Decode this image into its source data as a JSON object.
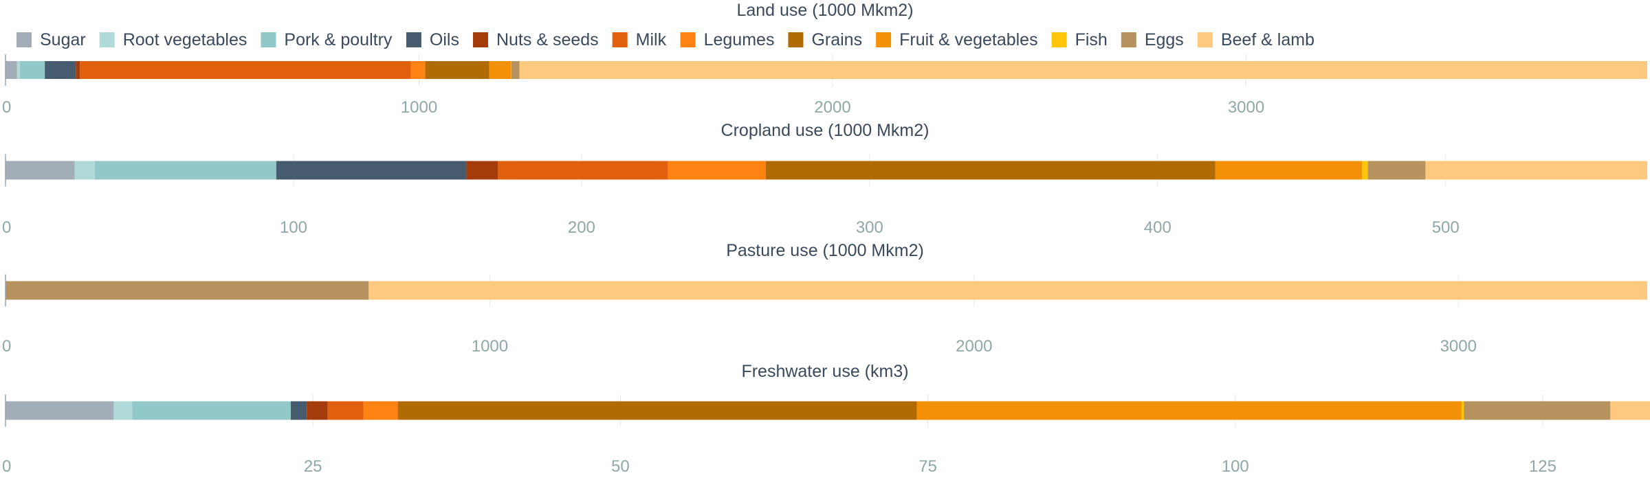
{
  "legend": {
    "items": [
      {
        "name": "Sugar",
        "color": "#a2adb8"
      },
      {
        "name": "Root vegetables",
        "color": "#b0dad8"
      },
      {
        "name": "Pork & poultry",
        "color": "#92c9c8"
      },
      {
        "name": "Oils",
        "color": "#465b6e"
      },
      {
        "name": "Nuts & seeds",
        "color": "#a33b0b"
      },
      {
        "name": "Milk",
        "color": "#e0600d"
      },
      {
        "name": "Legumes",
        "color": "#fe8313"
      },
      {
        "name": "Grains",
        "color": "#b06b05"
      },
      {
        "name": "Fruit & vegetables",
        "color": "#f39106"
      },
      {
        "name": "Fish",
        "color": "#fec50b"
      },
      {
        "name": "Eggs",
        "color": "#b6925e"
      },
      {
        "name": "Beef & lamb",
        "color": "#fdc97f"
      }
    ]
  },
  "chart_data": [
    {
      "type": "bar",
      "orientation": "horizontal-stacked",
      "title": "Land use (1000 Mkm2)",
      "xlim": [
        0,
        3970
      ],
      "ticks": [
        0,
        1000,
        2000,
        3000
      ],
      "grid": true,
      "series": [
        {
          "name": "Sugar",
          "value": 28
        },
        {
          "name": "Root vegetables",
          "value": 7
        },
        {
          "name": "Pork & poultry",
          "value": 60
        },
        {
          "name": "Oils",
          "value": 75
        },
        {
          "name": "Nuts & seeds",
          "value": 10
        },
        {
          "name": "Milk",
          "value": 800
        },
        {
          "name": "Legumes",
          "value": 35
        },
        {
          "name": "Grains",
          "value": 155
        },
        {
          "name": "Fruit & vegetables",
          "value": 52
        },
        {
          "name": "Fish",
          "value": 1
        },
        {
          "name": "Eggs",
          "value": 20
        },
        {
          "name": "Beef & lamb",
          "value": 2727
        }
      ]
    },
    {
      "type": "bar",
      "orientation": "horizontal-stacked",
      "title": "Cropland use (1000 Mkm2)",
      "xlim": [
        0,
        570
      ],
      "ticks": [
        0,
        100,
        200,
        300,
        400,
        500
      ],
      "grid": true,
      "series": [
        {
          "name": "Sugar",
          "value": 24
        },
        {
          "name": "Root vegetables",
          "value": 7
        },
        {
          "name": "Pork & poultry",
          "value": 63
        },
        {
          "name": "Oils",
          "value": 66
        },
        {
          "name": "Nuts & seeds",
          "value": 11
        },
        {
          "name": "Milk",
          "value": 59
        },
        {
          "name": "Legumes",
          "value": 34
        },
        {
          "name": "Grains",
          "value": 156
        },
        {
          "name": "Fruit & vegetables",
          "value": 51
        },
        {
          "name": "Fish",
          "value": 2
        },
        {
          "name": "Eggs",
          "value": 20
        },
        {
          "name": "Beef & lamb",
          "value": 77
        }
      ]
    },
    {
      "type": "bar",
      "orientation": "horizontal-stacked",
      "title": "Pasture use (1000 Mkm2)",
      "xlim": [
        0,
        3390
      ],
      "ticks": [
        0,
        1000,
        2000,
        3000
      ],
      "grid": true,
      "series": [
        {
          "name": "Eggs",
          "value": 750
        },
        {
          "name": "Beef & lamb",
          "value": 2640
        }
      ]
    },
    {
      "type": "bar",
      "orientation": "horizontal-stacked",
      "title": "Freshwater use (km3)",
      "xlim": [
        0,
        133.5
      ],
      "ticks": [
        0,
        25,
        50,
        75,
        100,
        125
      ],
      "grid": true,
      "series": [
        {
          "name": "Sugar",
          "value": 8.8
        },
        {
          "name": "Root vegetables",
          "value": 1.5
        },
        {
          "name": "Pork & poultry",
          "value": 12.9
        },
        {
          "name": "Oils",
          "value": 1.3
        },
        {
          "name": "Nuts & seeds",
          "value": 1.7
        },
        {
          "name": "Milk",
          "value": 2.9
        },
        {
          "name": "Legumes",
          "value": 2.8
        },
        {
          "name": "Grains",
          "value": 42.2
        },
        {
          "name": "Fruit & vegetables",
          "value": 44.3
        },
        {
          "name": "Fish",
          "value": 0.2
        },
        {
          "name": "Eggs",
          "value": 11.9
        },
        {
          "name": "Beef & lamb",
          "value": 3.3
        }
      ]
    }
  ]
}
